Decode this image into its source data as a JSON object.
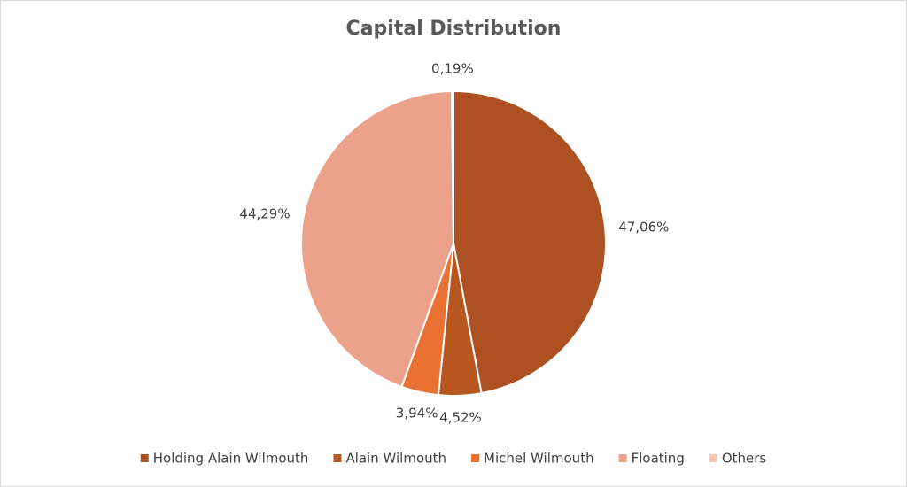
{
  "chart_data": {
    "type": "pie",
    "title": "Capital Distribution",
    "categories": [
      "Holding Alain Wilmouth",
      "Alain Wilmouth",
      "Michel Wilmouth",
      "Floating",
      "Others"
    ],
    "values": [
      47.06,
      4.52,
      3.94,
      44.29,
      0.19
    ],
    "value_labels": [
      "47,06%",
      "4,52%",
      "3,94%",
      "44,29%",
      "0,19%"
    ],
    "colors": [
      "#ad5122",
      "#b8561f",
      "#e97132",
      "#eca18b",
      "#f4c6b6"
    ]
  }
}
